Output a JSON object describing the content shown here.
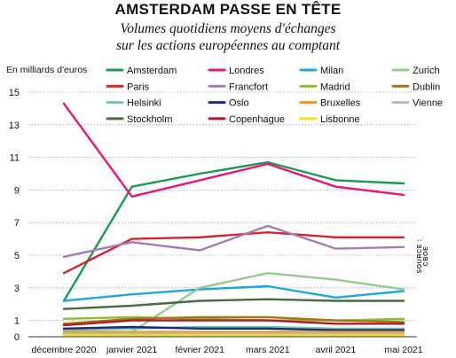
{
  "title": "AMSTERDAM PASSE EN TÊTE",
  "subtitle": "Volumes quotidiens moyens d'échanges\nsur les actions européennes au comptant",
  "source": "SOURCE : CBOE",
  "chart_data": {
    "type": "line",
    "title": "AMSTERDAM PASSE EN TÊTE",
    "ylabel": "En milliards d'euros",
    "xlabel": "",
    "categories": [
      "décembre 2020",
      "janvier 2021",
      "février 2021",
      "mars 2021",
      "avril 2021",
      "mai 2021"
    ],
    "yticks": [
      "15",
      "13",
      "11",
      "9",
      "7",
      "5",
      "3",
      "1",
      "0"
    ],
    "ylim": [
      0,
      15
    ],
    "grid": true,
    "legend": "top",
    "series": [
      {
        "name": "Amsterdam",
        "color": "#1a9a4b",
        "values": [
          2.2,
          9.2,
          10.0,
          10.7,
          9.6,
          9.4
        ]
      },
      {
        "name": "Londres",
        "color": "#e8157a",
        "values": [
          14.3,
          8.6,
          9.6,
          10.6,
          9.2,
          8.7
        ]
      },
      {
        "name": "Milan",
        "color": "#1ea6e0",
        "values": [
          2.2,
          2.6,
          2.9,
          3.1,
          2.4,
          2.8
        ]
      },
      {
        "name": "Zurich",
        "color": "#93cc88",
        "values": [
          0.2,
          0.3,
          3.0,
          3.9,
          3.5,
          2.9
        ]
      },
      {
        "name": "Paris",
        "color": "#d4242c",
        "values": [
          3.9,
          6.0,
          6.1,
          6.4,
          6.1,
          6.1
        ]
      },
      {
        "name": "Francfort",
        "color": "#a979b5",
        "values": [
          4.9,
          5.8,
          5.3,
          6.8,
          5.4,
          5.5
        ]
      },
      {
        "name": "Madrid",
        "color": "#8cbf26",
        "values": [
          1.1,
          1.2,
          1.1,
          1.0,
          1.0,
          1.1
        ]
      },
      {
        "name": "Dublin",
        "color": "#a0781a",
        "values": [
          0.8,
          1.1,
          1.2,
          1.2,
          1.0,
          0.9
        ]
      },
      {
        "name": "Helsinki",
        "color": "#6ccaa8",
        "values": [
          0.4,
          0.5,
          0.6,
          0.6,
          0.5,
          0.5
        ]
      },
      {
        "name": "Oslo",
        "color": "#1d2a7a",
        "values": [
          0.5,
          0.6,
          0.5,
          0.5,
          0.4,
          0.4
        ]
      },
      {
        "name": "Bruxelles",
        "color": "#f39a1e",
        "values": [
          0.3,
          0.3,
          0.3,
          0.3,
          0.3,
          0.3
        ]
      },
      {
        "name": "Vienne",
        "color": "#b8b8b8",
        "values": [
          0.2,
          0.2,
          0.2,
          0.2,
          0.2,
          0.2
        ]
      },
      {
        "name": "Stockholm",
        "color": "#4a6b3a",
        "values": [
          1.7,
          1.9,
          2.2,
          2.3,
          2.2,
          2.2
        ]
      },
      {
        "name": "Copenhague",
        "color": "#b01a2e",
        "values": [
          0.7,
          1.0,
          1.0,
          1.0,
          0.8,
          0.8
        ]
      },
      {
        "name": "Lisbonne",
        "color": "#f2e21b",
        "values": [
          0.1,
          0.1,
          0.1,
          0.1,
          0.1,
          0.1
        ]
      }
    ]
  }
}
